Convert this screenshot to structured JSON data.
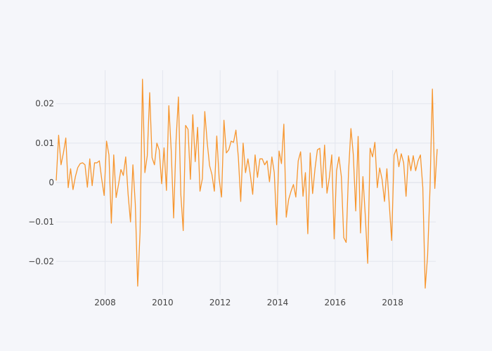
{
  "chart_data": {
    "type": "line",
    "title": "",
    "xlabel": "",
    "ylabel": "",
    "x_start_year": 2006.3,
    "x_step_years": 0.08333,
    "xlim": [
      2006.3,
      2019.5
    ],
    "ylim": [
      -0.0285,
      0.0285
    ],
    "x_ticks": [
      2008,
      2010,
      2012,
      2014,
      2016,
      2018
    ],
    "x_tick_labels": [
      "2008",
      "2010",
      "2012",
      "2014",
      "2016",
      "2018"
    ],
    "y_ticks": [
      -0.02,
      -0.01,
      0,
      0.01,
      0.02
    ],
    "y_tick_labels": [
      "−0.02",
      "−0.01",
      "0",
      "0.01",
      "0.02"
    ],
    "grid": true,
    "legend": "none",
    "colors": {
      "line": "#f7962e",
      "grid": "#e3e6ee",
      "zero_line": "#e3e6ee",
      "background": "#f5f6fa"
    },
    "series": [
      {
        "values": [
          0.0005,
          0.012,
          0.0045,
          0.0075,
          0.0113,
          -0.0013,
          0.0035,
          -0.0018,
          0.0015,
          0.0038,
          0.0048,
          0.005,
          0.0045,
          -0.0012,
          0.006,
          -0.0008,
          0.005,
          0.005,
          0.0055,
          0.0008,
          -0.0033,
          0.0105,
          0.007,
          -0.0103,
          0.007,
          -0.0038,
          -0.0005,
          0.0033,
          0.0018,
          0.0065,
          -0.003,
          -0.01,
          0.0045,
          -0.0055,
          -0.0263,
          -0.0125,
          0.0262,
          0.0025,
          0.0068,
          0.0228,
          0.0063,
          0.0045,
          0.01,
          0.0082,
          -0.0003,
          0.0088,
          -0.002,
          0.0195,
          0.008,
          -0.009,
          0.0105,
          0.0217,
          -0.003,
          -0.0122,
          0.0145,
          0.0135,
          0.0008,
          0.0172,
          0.0053,
          0.014,
          -0.0022,
          0.001,
          0.018,
          0.0102,
          0.0043,
          0.002,
          -0.0022,
          0.0118,
          0.001,
          -0.0037,
          0.0158,
          0.0075,
          0.0083,
          0.0105,
          0.0102,
          0.0133,
          0.0065,
          -0.0048,
          0.01,
          0.0025,
          0.006,
          0.002,
          -0.003,
          0.007,
          0.0013,
          0.006,
          0.006,
          0.0045,
          0.0055,
          0.0002,
          0.0065,
          0.0025,
          -0.0107,
          0.008,
          0.0048,
          0.0148,
          -0.0088,
          -0.0043,
          -0.0022,
          -0.0005,
          -0.0037,
          0.0055,
          0.0078,
          -0.0035,
          0.0025,
          -0.013,
          0.0075,
          -0.0028,
          0.0035,
          0.0083,
          0.0087,
          -0.0013,
          0.0095,
          -0.0027,
          0.0013,
          0.007,
          -0.0143,
          0.003,
          0.0065,
          0.0015,
          -0.014,
          -0.0152,
          0.0027,
          0.0137,
          0.007,
          -0.0072,
          0.0117,
          -0.0128,
          0.0015,
          -0.0085,
          -0.0205,
          0.0087,
          0.0065,
          0.0102,
          -0.0013,
          0.0037,
          0.0008,
          -0.0048,
          0.0035,
          -0.0055,
          -0.0147,
          0.007,
          0.0085,
          0.004,
          0.0073,
          0.005,
          -0.0035,
          0.0068,
          0.003,
          0.0068,
          0.003,
          0.0055,
          0.007,
          -0.0013,
          -0.0268,
          -0.0185,
          -0.0015,
          0.0237,
          -0.0015,
          0.0085
        ]
      }
    ]
  }
}
